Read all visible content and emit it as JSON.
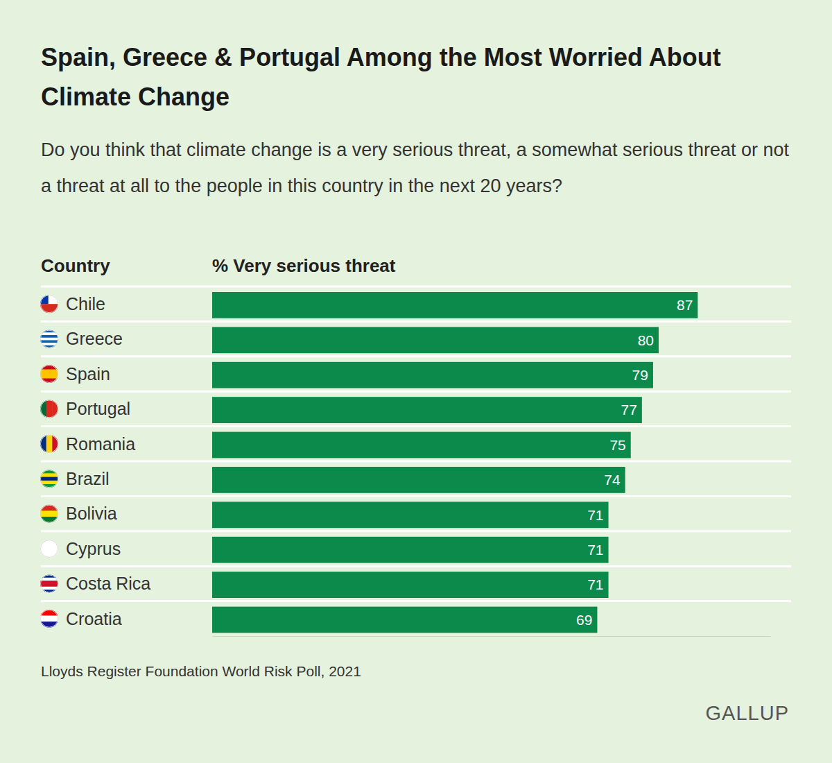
{
  "chart_data": {
    "type": "bar",
    "orientation": "horizontal",
    "title": "Spain, Greece & Portugal Among the Most Worried About Climate Change",
    "subtitle": "Do you think that climate change is a very serious threat, a somewhat serious threat or not a threat at all to the people in this country in the next 20 years?",
    "ylabel": "Country",
    "xlabel": "% Very serious threat",
    "categories": [
      "Chile",
      "Greece",
      "Spain",
      "Portugal",
      "Romania",
      "Brazil",
      "Bolivia",
      "Cyprus",
      "Costa Rica",
      "Croatia"
    ],
    "values": [
      87,
      80,
      79,
      77,
      75,
      74,
      71,
      71,
      71,
      69
    ],
    "color": "#0b8a4c",
    "xlim": [
      0,
      100
    ],
    "tick_labels": "y",
    "data_labels": true,
    "source": "Lloyds Register Foundation World Risk Poll, 2021",
    "annotations": [
      "GALLUP"
    ]
  }
}
